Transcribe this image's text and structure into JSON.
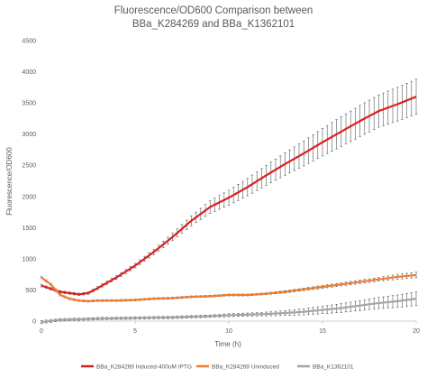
{
  "chart_data": {
    "type": "line",
    "title_lines": [
      "Fluorescence/OD600 Comparison between",
      "BBa_K284269 and BBa_K1362101"
    ],
    "xlabel": "Time (h)",
    "ylabel": "Fluorescence/OD600",
    "xlim": [
      0,
      20
    ],
    "ylim": [
      0,
      4500
    ],
    "x_ticks": [
      "0",
      "5",
      "10",
      "15",
      "20"
    ],
    "y_ticks": [
      "0",
      "500",
      "1000",
      "1500",
      "2000",
      "2500",
      "3000",
      "3500",
      "4000",
      "4500"
    ],
    "grid": false,
    "legend_position": "bottom",
    "error_bars": true,
    "series": [
      {
        "name": "BBa_K284269 Induced-400uM IPTG",
        "color": "#d81f1f",
        "x": [
          0,
          1,
          2,
          2.5,
          3,
          4,
          5,
          6,
          7,
          8,
          9,
          10,
          11,
          12,
          13,
          14,
          15,
          16,
          17,
          18,
          19,
          20
        ],
        "y": [
          570,
          470,
          430,
          450,
          530,
          700,
          890,
          1110,
          1350,
          1610,
          1830,
          1980,
          2150,
          2340,
          2520,
          2690,
          2870,
          3040,
          3210,
          3370,
          3480,
          3600
        ],
        "err": [
          20,
          20,
          20,
          20,
          25,
          30,
          35,
          45,
          60,
          80,
          100,
          120,
          140,
          160,
          180,
          200,
          220,
          240,
          250,
          260,
          270,
          280
        ]
      },
      {
        "name": "BBa_K284269 Uninduced",
        "color": "#ed7d31",
        "x": [
          0,
          0.5,
          1,
          1.5,
          2,
          2.5,
          3,
          4,
          5,
          6,
          7,
          8,
          9,
          10,
          11,
          12,
          13,
          14,
          15,
          16,
          17,
          18,
          19,
          20
        ],
        "y": [
          700,
          590,
          420,
          360,
          330,
          320,
          330,
          330,
          340,
          360,
          370,
          390,
          400,
          420,
          420,
          440,
          470,
          510,
          550,
          590,
          630,
          670,
          710,
          740
        ],
        "err": [
          15,
          15,
          15,
          15,
          15,
          15,
          15,
          15,
          15,
          15,
          15,
          15,
          15,
          15,
          15,
          15,
          20,
          20,
          25,
          25,
          30,
          30,
          40,
          45
        ]
      },
      {
        "name": "BBa_K1362101",
        "color": "#a5a5a5",
        "x": [
          0,
          1,
          2,
          3,
          4,
          5,
          6,
          7,
          8,
          9,
          10,
          11,
          12,
          13,
          14,
          15,
          16,
          17,
          18,
          19,
          20
        ],
        "y": [
          -15,
          20,
          30,
          40,
          45,
          50,
          55,
          60,
          70,
          80,
          95,
          105,
          115,
          130,
          150,
          180,
          210,
          250,
          290,
          320,
          360
        ],
        "err": [
          25,
          20,
          20,
          20,
          20,
          20,
          20,
          20,
          20,
          20,
          25,
          25,
          30,
          40,
          50,
          60,
          70,
          80,
          90,
          100,
          110
        ]
      }
    ]
  }
}
